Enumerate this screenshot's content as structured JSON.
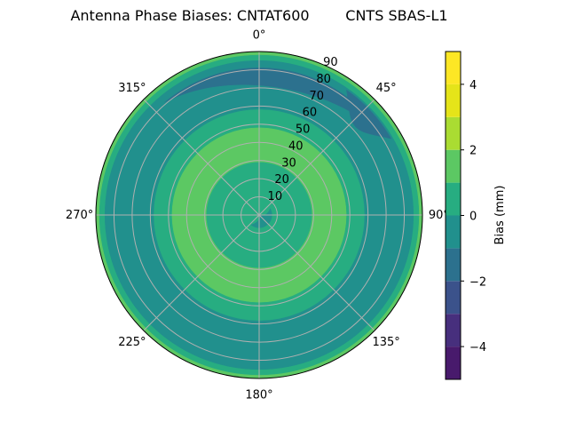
{
  "chart_data": {
    "type": "polar-contour",
    "title": "Antenna Phase Biases: CNTAT600        CNTS SBAS-L1",
    "angular_ticks": [
      "0°",
      "45°",
      "90°",
      "135°",
      "180°",
      "225°",
      "270°",
      "315°"
    ],
    "angular_tick_values": [
      0,
      45,
      90,
      135,
      180,
      225,
      270,
      315
    ],
    "radial_ticks": [
      "10",
      "20",
      "30",
      "40",
      "50",
      "60",
      "70",
      "80",
      "90"
    ],
    "radial_tick_values": [
      10,
      20,
      30,
      40,
      50,
      60,
      70,
      80,
      90
    ],
    "radial_range": [
      0,
      90
    ],
    "angular_direction": "clockwise",
    "zero_location": "top",
    "grid": true,
    "colormap": "viridis",
    "levels": [
      -5,
      -4,
      -3,
      -2,
      -1,
      0,
      1,
      2,
      3,
      4,
      5
    ],
    "level_colors": [
      "#481a6c",
      "#472f7d",
      "#3b528b",
      "#2c718e",
      "#21908d",
      "#27ad81",
      "#5cc863",
      "#aadc32",
      "#e5e419",
      "#fde725"
    ],
    "colorbar": {
      "label": "Bias (mm)",
      "ticks": [
        "−4",
        "−2",
        "0",
        "2",
        "4"
      ],
      "tick_values": [
        -4,
        -2,
        0,
        2,
        4
      ],
      "range": [
        -5,
        5
      ]
    },
    "regions": [
      {
        "bias_range": [
          1,
          2
        ],
        "zenith": [
          0,
          90
        ],
        "azimuth": [
          0,
          360
        ]
      },
      {
        "bias_range": [
          0,
          1
        ],
        "zenith": [
          0,
          88
        ],
        "azimuth": [
          0,
          360
        ]
      },
      {
        "bias_range": [
          -1,
          0
        ],
        "zenith": [
          0,
          85
        ],
        "azimuth": [
          0,
          360
        ]
      },
      {
        "bias_range": [
          -2,
          -1
        ],
        "zenith": [
          71,
          81
        ],
        "azimuth": [
          -40,
          58
        ]
      },
      {
        "bias_range": [
          -2,
          -1
        ],
        "zenith": [
          72,
          84
        ],
        "azimuth": [
          35,
          60
        ]
      },
      {
        "bias_range": [
          0,
          1
        ],
        "zenith": [
          0,
          58
        ],
        "azimuth": [
          0,
          360
        ]
      },
      {
        "bias_range": [
          1,
          2
        ],
        "zenith": [
          0,
          48
        ],
        "azimuth": [
          0,
          360
        ]
      },
      {
        "bias_range": [
          0,
          1
        ],
        "zenith": [
          0,
          29
        ],
        "azimuth": [
          0,
          360
        ]
      },
      {
        "bias_range": [
          -1,
          0
        ],
        "zenith": [
          0,
          7
        ],
        "azimuth": [
          60,
          220
        ]
      }
    ]
  }
}
